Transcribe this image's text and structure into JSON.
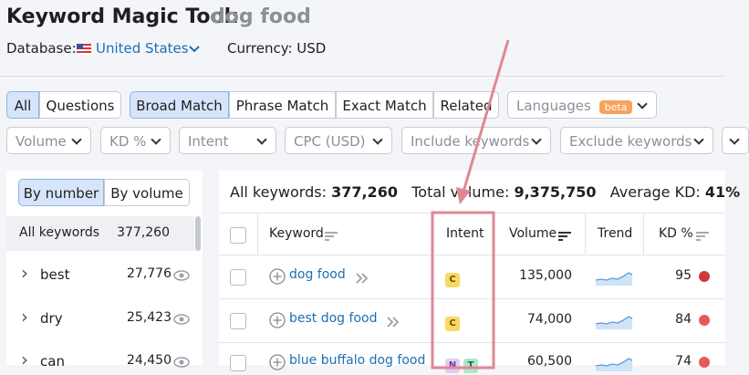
{
  "header": {
    "title": "Keyword Magic Tool:",
    "query": "dog food",
    "database_label": "Database:",
    "database": "United States",
    "currency": "Currency: USD"
  },
  "tabs": [
    "All",
    "Questions",
    "Broad Match",
    "Phrase Match",
    "Exact Match",
    "Related"
  ],
  "languages": {
    "label": "Languages",
    "badge": "beta"
  },
  "filters": [
    "Volume",
    "KD %",
    "Intent",
    "CPC (USD)",
    "Include keywords",
    "Exclude keywords"
  ],
  "sidebar": {
    "toggle": [
      "By number",
      "By volume"
    ],
    "groups": [
      {
        "name": "All keywords",
        "count": "377,260"
      },
      {
        "name": "best",
        "count": "27,776"
      },
      {
        "name": "dry",
        "count": "25,423"
      },
      {
        "name": "can",
        "count": "24,450"
      }
    ]
  },
  "summary": {
    "all_label": "All keywords:",
    "all_value": "377,260",
    "volume_label": "Total volume:",
    "volume_value": "9,375,750",
    "kd_label": "Average KD:",
    "kd_value": "41%"
  },
  "table": {
    "columns": [
      "Keyword",
      "Intent",
      "Volume",
      "Trend",
      "KD %"
    ],
    "rows": [
      {
        "keyword": "dog food",
        "intent": [
          "C"
        ],
        "volume": "135,000",
        "kd": 95
      },
      {
        "keyword": "best dog food",
        "intent": [
          "C"
        ],
        "volume": "74,000",
        "kd": 84
      },
      {
        "keyword": "blue buffalo dog food",
        "intent": [
          "N",
          "T"
        ],
        "volume": "60,500",
        "kd": 74
      }
    ]
  }
}
